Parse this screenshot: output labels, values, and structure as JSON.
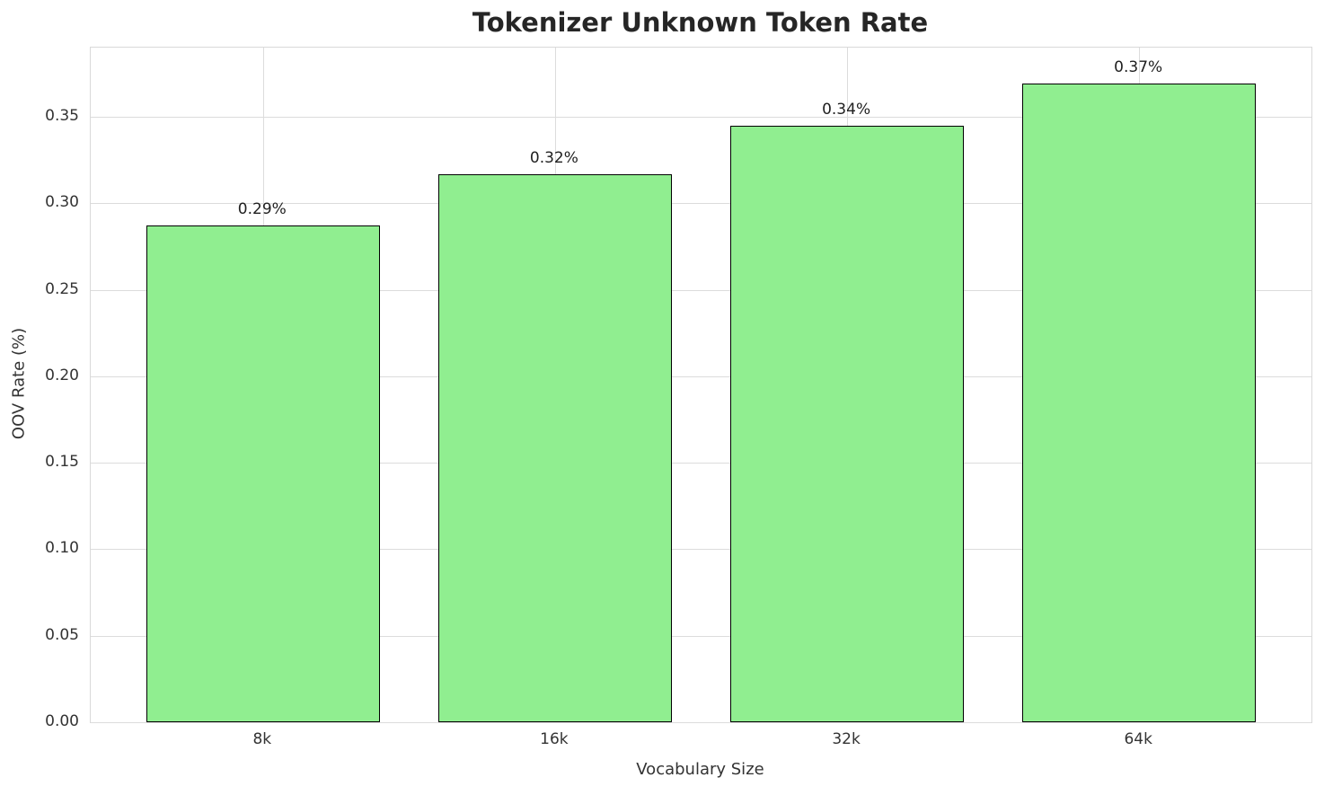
{
  "chart_data": {
    "type": "bar",
    "title": "Tokenizer Unknown Token Rate",
    "xlabel": "Vocabulary Size",
    "ylabel": "OOV Rate (%)",
    "categories": [
      "8k",
      "16k",
      "32k",
      "64k"
    ],
    "values": [
      0.287,
      0.317,
      0.345,
      0.369
    ],
    "bar_labels": [
      "0.29%",
      "0.32%",
      "0.34%",
      "0.37%"
    ],
    "yticks": [
      0.0,
      0.05,
      0.1,
      0.15,
      0.2,
      0.25,
      0.3,
      0.35
    ],
    "ytick_labels": [
      "0.00",
      "0.05",
      "0.10",
      "0.15",
      "0.20",
      "0.25",
      "0.30",
      "0.35"
    ],
    "ylim": [
      0,
      0.39
    ],
    "grid": true,
    "legend": false,
    "bar_color": "#90EE90",
    "bar_edge_color": "#000000",
    "grid_color": "#dcdcdc"
  }
}
